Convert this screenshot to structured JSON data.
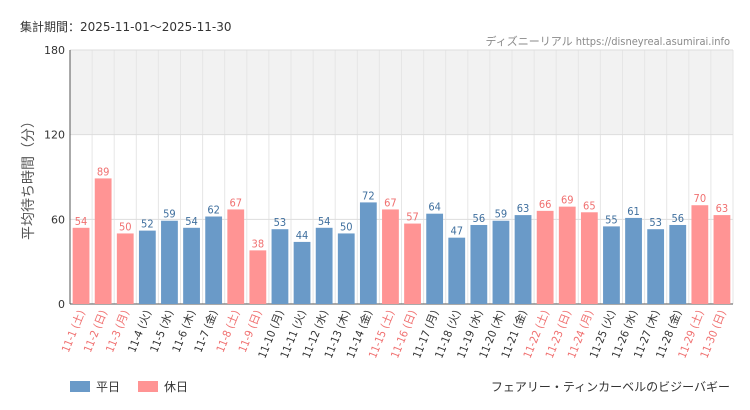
{
  "header": {
    "period_label": "集計期間：2025-11-01〜2025-11-30",
    "credit": "ディズニーリアル https://disneyreal.asumirai.info"
  },
  "legend": [
    {
      "name": "平日",
      "color": "#6a9ac8"
    },
    {
      "name": "休日",
      "color": "#ff9494"
    }
  ],
  "attraction_title": "フェアリー・ティンカーベルのビジーバギー",
  "chart_data": {
    "type": "bar",
    "title": "フェアリー・ティンカーベルのビジーバギー",
    "ylabel": "平均待ち時間（分）",
    "xlabel": "",
    "ylim": [
      0,
      180
    ],
    "yticks": [
      0,
      60,
      120,
      180
    ],
    "highlight_band": [
      120,
      180
    ],
    "weekday_color": "#6a9ac8",
    "holiday_color": "#ff9494",
    "categories": [
      "11-1 (土)",
      "11-2 (日)",
      "11-3 (月)",
      "11-4 (火)",
      "11-5 (水)",
      "11-6 (木)",
      "11-7 (金)",
      "11-8 (土)",
      "11-9 (日)",
      "11-10 (月)",
      "11-11 (火)",
      "11-12 (水)",
      "11-13 (木)",
      "11-14 (金)",
      "11-15 (土)",
      "11-16 (日)",
      "11-17 (月)",
      "11-18 (火)",
      "11-19 (水)",
      "11-20 (木)",
      "11-21 (金)",
      "11-22 (土)",
      "11-23 (日)",
      "11-24 (月)",
      "11-25 (火)",
      "11-26 (水)",
      "11-27 (木)",
      "11-28 (金)",
      "11-29 (土)",
      "11-30 (日)"
    ],
    "values": [
      54,
      89,
      50,
      52,
      59,
      54,
      62,
      67,
      38,
      53,
      44,
      54,
      50,
      72,
      67,
      57,
      64,
      47,
      56,
      59,
      63,
      66,
      69,
      65,
      55,
      61,
      53,
      56,
      70,
      63
    ],
    "day_type": [
      "休日",
      "休日",
      "休日",
      "平日",
      "平日",
      "平日",
      "平日",
      "休日",
      "休日",
      "平日",
      "平日",
      "平日",
      "平日",
      "平日",
      "休日",
      "休日",
      "平日",
      "平日",
      "平日",
      "平日",
      "平日",
      "休日",
      "休日",
      "休日",
      "平日",
      "平日",
      "平日",
      "平日",
      "休日",
      "休日"
    ]
  }
}
